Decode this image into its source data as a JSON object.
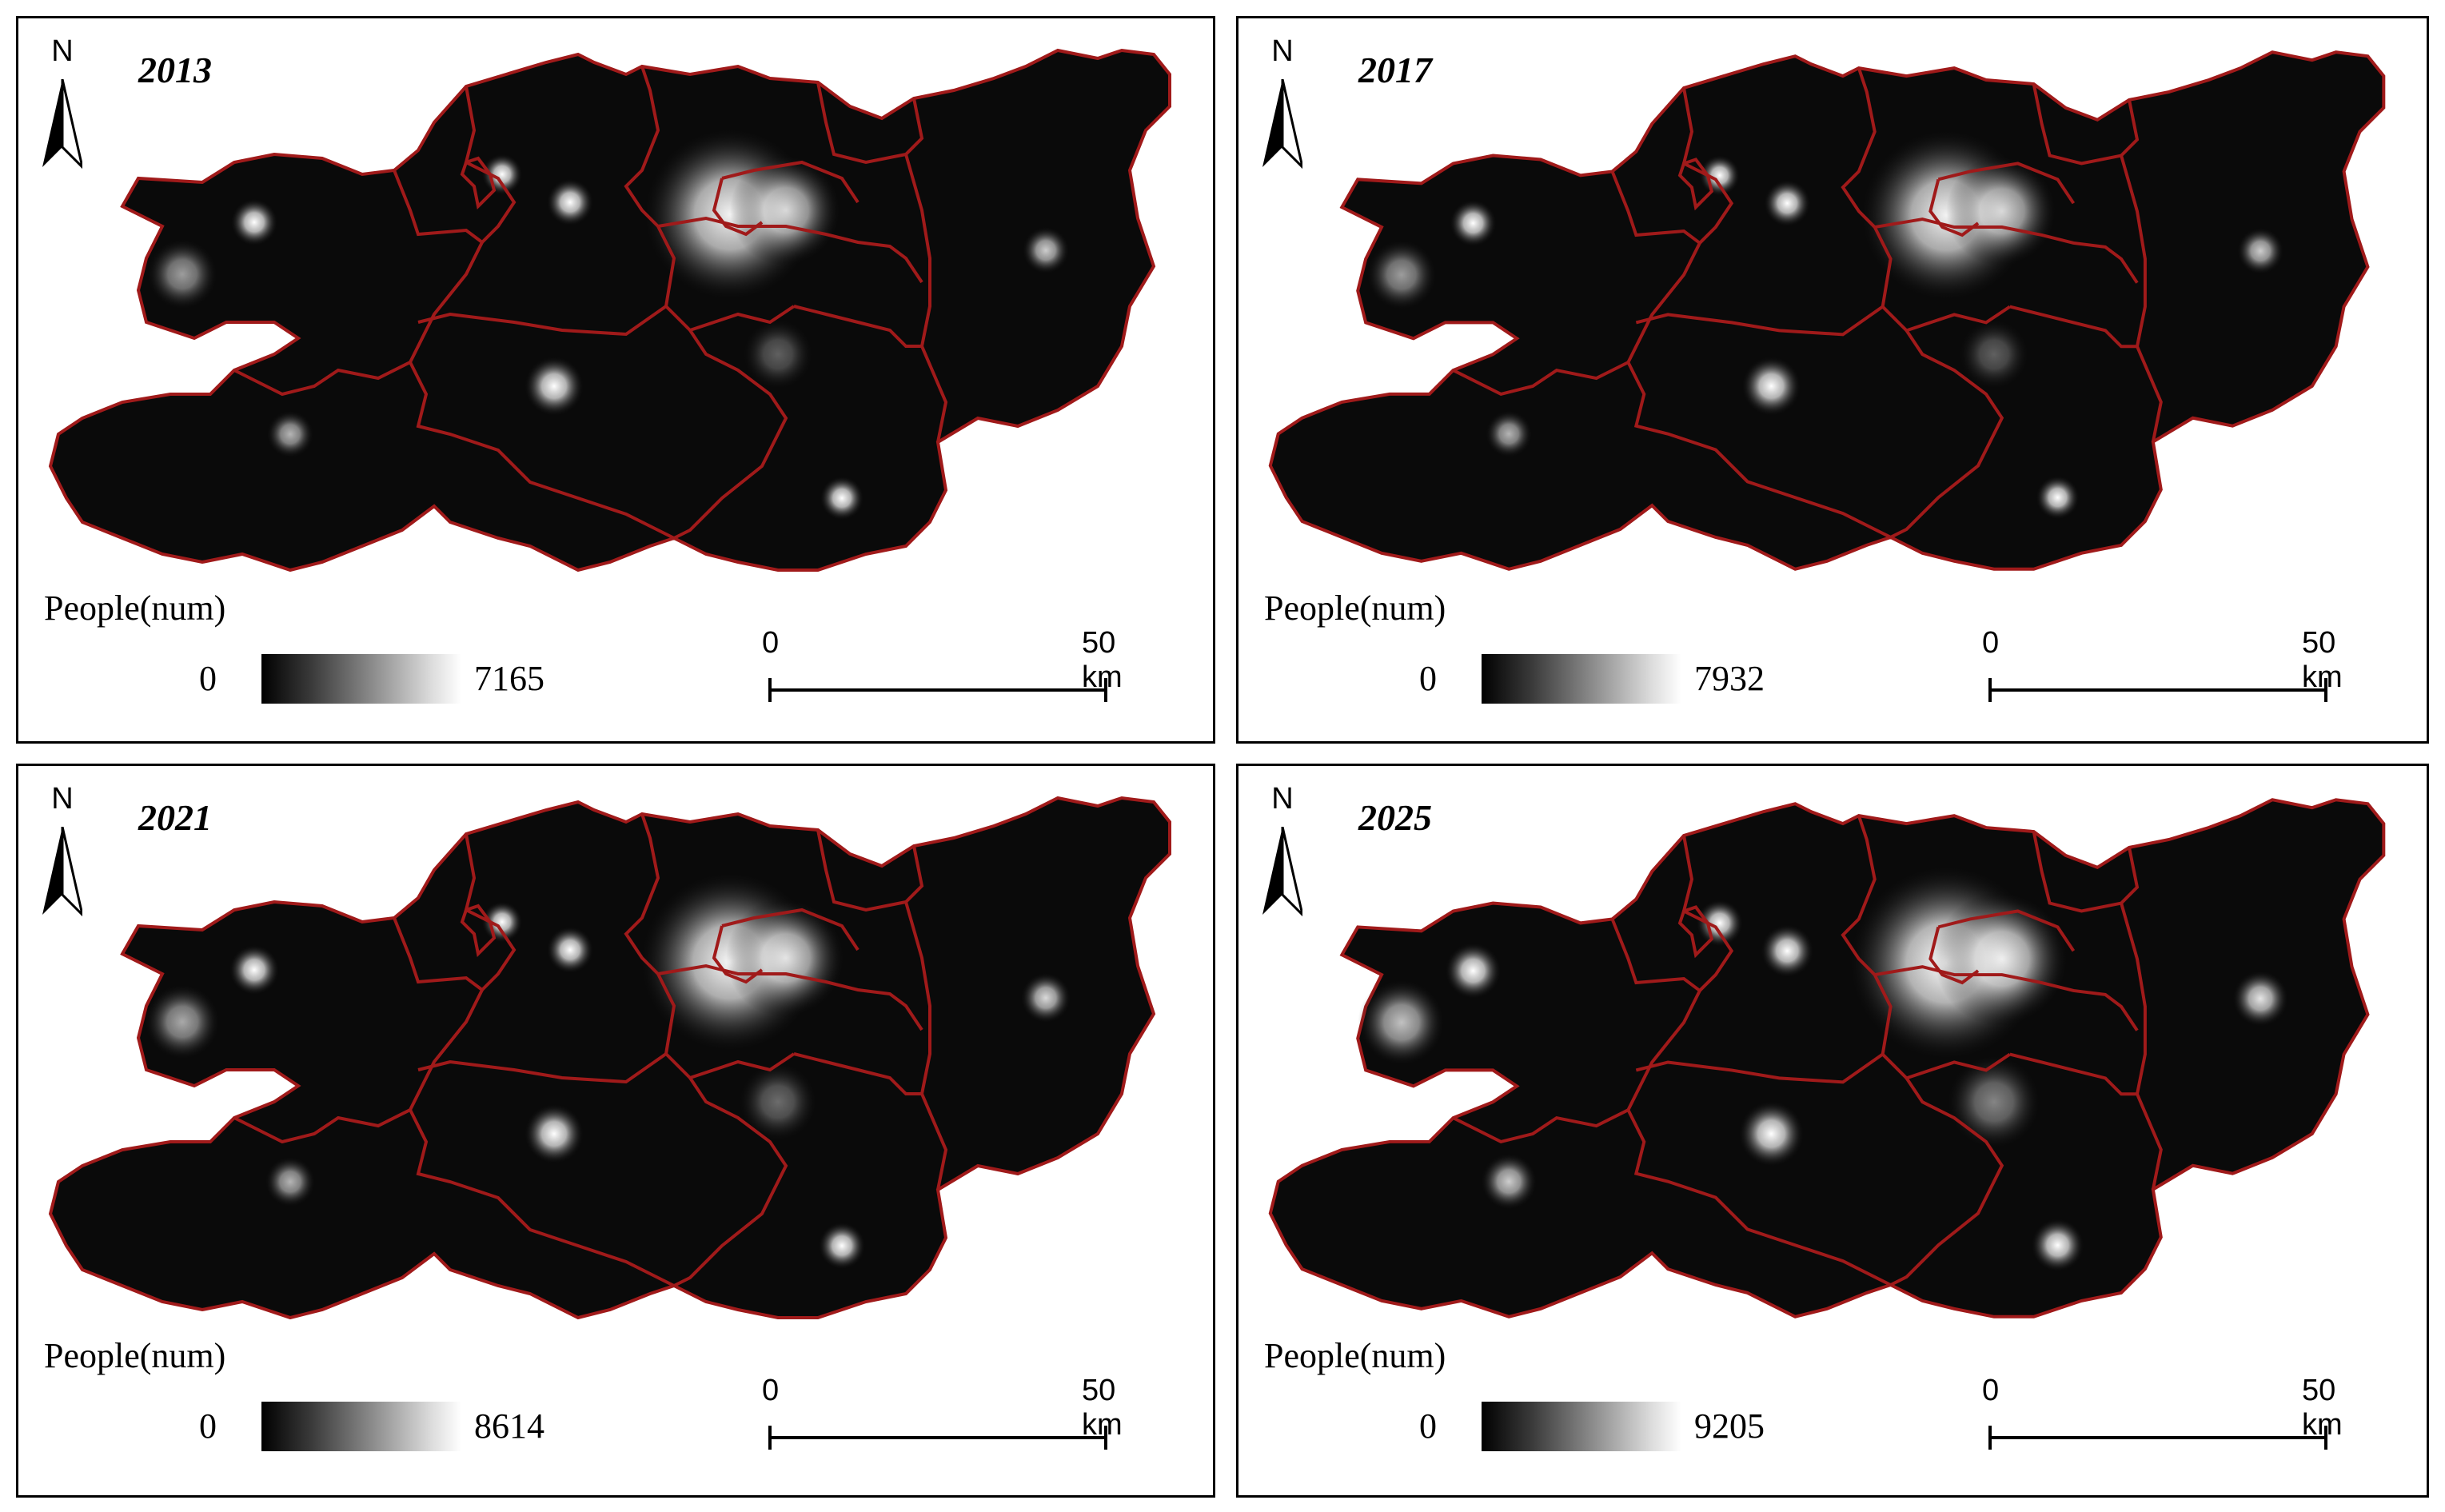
{
  "panels": [
    {
      "year": "2013",
      "north": "N",
      "legend_title": "People(num)",
      "legend_min": "0",
      "legend_max": "7165",
      "scale_zero": "0",
      "scale_end": "50 km"
    },
    {
      "year": "2017",
      "north": "N",
      "legend_title": "People(num)",
      "legend_min": "0",
      "legend_max": "7932",
      "scale_zero": "0",
      "scale_end": "50 km"
    },
    {
      "year": "2021",
      "north": "N",
      "legend_title": "People(num)",
      "legend_min": "0",
      "legend_max": "8614",
      "scale_zero": "0",
      "scale_end": "50 km"
    },
    {
      "year": "2025",
      "north": "N",
      "legend_title": "People(num)",
      "legend_min": "0",
      "legend_max": "9205",
      "scale_zero": "0",
      "scale_end": "50 km"
    }
  ],
  "colors": {
    "background": "#ffffff",
    "map_fill": "#0a0a0a",
    "boundary": "#a01a1a",
    "hotspot": "#ffffff",
    "frame": "#000000"
  },
  "icons": {
    "north_arrow": "north-arrow-icon"
  }
}
